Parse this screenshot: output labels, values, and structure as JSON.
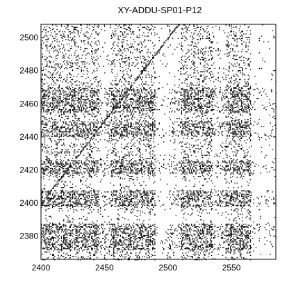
{
  "chart_data": {
    "type": "heatmap",
    "title": "XY-ADDU-SP01-P12",
    "xlabel": "",
    "ylabel": "",
    "xlim": [
      2400,
      2585
    ],
    "ylim": [
      2366,
      2508
    ],
    "x_ticks": [
      2400,
      2450,
      2500,
      2550
    ],
    "y_ticks": [
      2380,
      2400,
      2420,
      2440,
      2460,
      2480,
      2500
    ],
    "x_tick_labels": [
      "2400",
      "2450",
      "2500",
      "2550"
    ],
    "y_tick_labels": [
      "2380",
      "2400",
      "2420",
      "2440",
      "2460",
      "2480",
      "2500"
    ],
    "colormap": [
      "#ffffff",
      "#000000"
    ],
    "description_of_cells": "binary recurrence plot; black points mark recurrences between time indices",
    "x_dense_ranges": [
      [
        2400,
        2445
      ],
      [
        2455,
        2490
      ],
      [
        2510,
        2535
      ],
      [
        2545,
        2565
      ]
    ],
    "y_dense_ranges": [
      [
        2455,
        2470
      ],
      [
        2440,
        2450
      ],
      [
        2418,
        2426
      ],
      [
        2398,
        2408
      ],
      [
        2372,
        2388
      ]
    ],
    "x_sparse_ranges": [
      [
        2490,
        2500
      ],
      [
        2565,
        2585
      ]
    ],
    "y_sparse_ranges": [
      [
        2408,
        2416
      ],
      [
        2388,
        2396
      ]
    ],
    "grid": false,
    "legend": "none"
  }
}
